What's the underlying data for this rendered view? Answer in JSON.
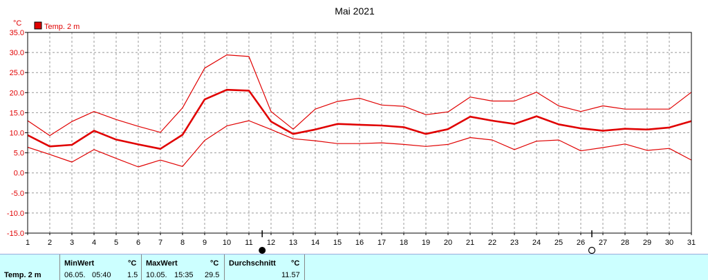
{
  "chart_data": {
    "type": "line",
    "title": "Mai 2021",
    "unit": "°C",
    "legend": "Temp. 2 m",
    "legend_color": "#e00000",
    "ylim": [
      -15.0,
      35.0
    ],
    "y_ticks": [
      "35.0",
      "30.0",
      "25.0",
      "20.0",
      "15.0",
      "10.0",
      "5.0",
      "0.0",
      "-5.0",
      "-10.0",
      "-15.0"
    ],
    "x": [
      1,
      2,
      3,
      4,
      5,
      6,
      7,
      8,
      9,
      10,
      11,
      12,
      13,
      14,
      15,
      16,
      17,
      18,
      19,
      20,
      21,
      22,
      23,
      24,
      25,
      26,
      27,
      28,
      29,
      30,
      31
    ],
    "series": [
      {
        "values": [
          13.0,
          9.3,
          12.8,
          15.3,
          13.3,
          11.6,
          10.1,
          16.2,
          26.1,
          29.4,
          29.0,
          15.3,
          10.9,
          15.9,
          17.8,
          18.6,
          16.9,
          16.6,
          14.5,
          15.2,
          18.9,
          17.9,
          17.9,
          20.1,
          16.7,
          15.3,
          16.7,
          15.9,
          15.9,
          15.9,
          20.1
        ],
        "width": 1.2
      },
      {
        "values": [
          9.4,
          6.6,
          7.0,
          10.5,
          8.3,
          7.1,
          6.0,
          9.5,
          18.3,
          20.7,
          20.5,
          12.8,
          9.7,
          10.8,
          12.2,
          12.0,
          11.8,
          11.4,
          9.7,
          10.9,
          14.0,
          13.0,
          12.2,
          14.1,
          12.1,
          11.1,
          10.5,
          11.0,
          10.8,
          11.3,
          12.9
        ],
        "width": 2.6
      },
      {
        "values": [
          6.4,
          4.6,
          2.7,
          5.8,
          3.6,
          1.5,
          3.2,
          1.6,
          8.1,
          11.7,
          13.0,
          10.8,
          8.5,
          8.0,
          7.3,
          7.3,
          7.5,
          7.1,
          6.6,
          7.1,
          8.8,
          8.2,
          5.8,
          7.9,
          8.2,
          5.5,
          6.3,
          7.2,
          5.6,
          6.1,
          3.2
        ],
        "width": 1.2
      }
    ],
    "line_color": "#e00000",
    "grid": true,
    "new_moon_day": 11.6,
    "full_moon_day": 26.5
  },
  "footer": {
    "label": "Temp. 2 m",
    "min": {
      "title": "MinWert",
      "unit": "°C",
      "date": "06.05.",
      "time": "05:40",
      "value": "1.5"
    },
    "max": {
      "title": "MaxWert",
      "unit": "°C",
      "date": "10.05.",
      "time": "15:35",
      "value": "29.5"
    },
    "avg": {
      "title": "Durchschnitt",
      "unit": "°C",
      "value": "11.57"
    }
  }
}
